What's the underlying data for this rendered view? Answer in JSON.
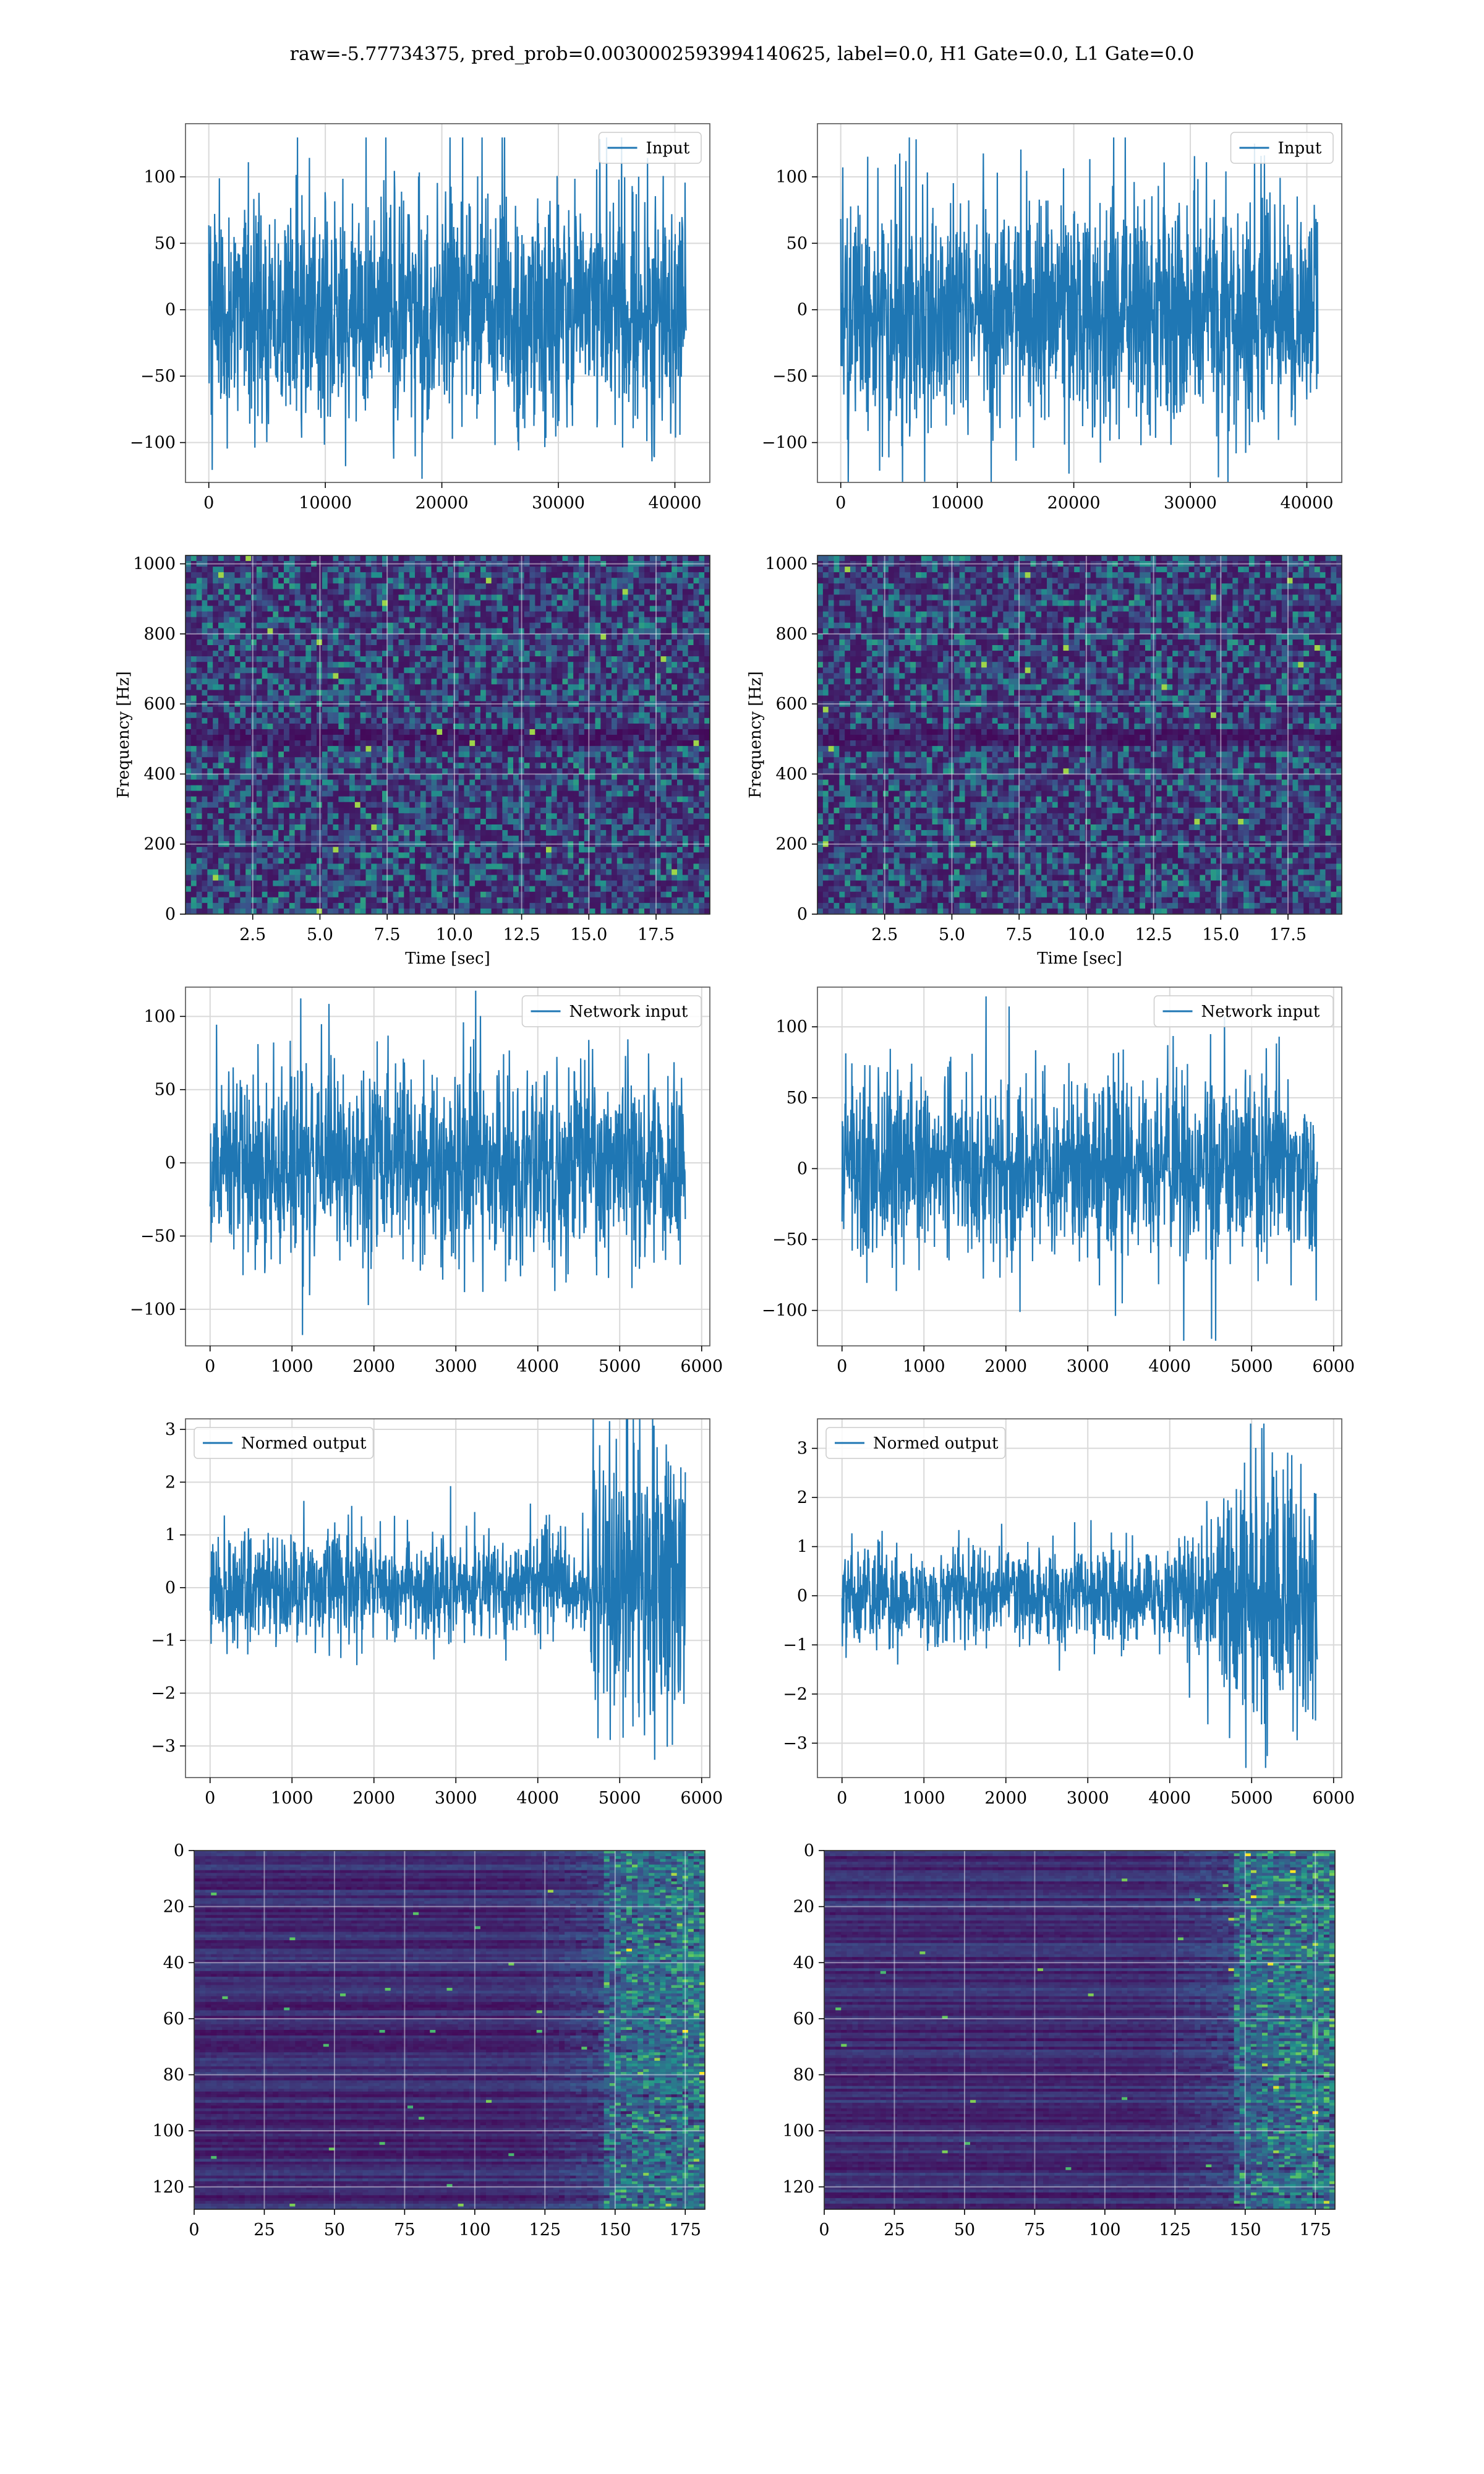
{
  "figure": {
    "title": "raw=-5.77734375, pred_prob=0.0030002593994140625, label=0.0, H1 Gate=0.0, L1 Gate=0.0"
  },
  "colors": {
    "line": "#1f77b4",
    "grid": "#d9d9d9",
    "axes": "#555555",
    "viridis_dark": "#440154",
    "viridis_mid": "#21918c",
    "viridis_bright": "#fde725"
  },
  "chart_data": [
    {
      "id": "input-left",
      "type": "line",
      "legend_loc": "upper right",
      "series": [
        {
          "name": "Input",
          "n": 40960,
          "amplitude": "approx -120 to 130",
          "envelope": [
            [
              0,
              45
            ],
            [
              1,
              45
            ]
          ]
        }
      ],
      "xlim": [
        -2000,
        43000
      ],
      "ylim": [
        -130,
        140
      ],
      "xticks": [
        0,
        10000,
        20000,
        30000,
        40000
      ],
      "yticks": [
        -100,
        -50,
        0,
        50,
        100
      ],
      "xlabel": "",
      "ylabel": "",
      "grid": true
    },
    {
      "id": "input-right",
      "type": "line",
      "legend_loc": "upper right",
      "series": [
        {
          "name": "Input",
          "n": 40960,
          "amplitude": "approx -120 to 130",
          "envelope": [
            [
              0,
              45
            ],
            [
              1,
              45
            ]
          ]
        }
      ],
      "xlim": [
        -2000,
        43000
      ],
      "ylim": [
        -130,
        140
      ],
      "xticks": [
        0,
        10000,
        20000,
        30000,
        40000
      ],
      "yticks": [
        -100,
        -50,
        0,
        50,
        100
      ],
      "xlabel": "",
      "ylabel": "",
      "grid": true
    },
    {
      "id": "spectrogram-left",
      "type": "heatmap",
      "colormap": "viridis",
      "xlim": [
        0,
        19.5
      ],
      "ylim": [
        0,
        1024
      ],
      "xticks": [
        2.5,
        5.0,
        7.5,
        10.0,
        12.5,
        15.0,
        17.5
      ],
      "yticks": [
        0,
        200,
        400,
        600,
        800,
        1000
      ],
      "xlabel": "Time [sec]",
      "ylabel": "Frequency [Hz]",
      "grid": true,
      "description": "noise-like spectrogram, dark band near 500 Hz"
    },
    {
      "id": "spectrogram-right",
      "type": "heatmap",
      "colormap": "viridis",
      "xlim": [
        0,
        19.5
      ],
      "ylim": [
        0,
        1024
      ],
      "xticks": [
        2.5,
        5.0,
        7.5,
        10.0,
        12.5,
        15.0,
        17.5
      ],
      "yticks": [
        0,
        200,
        400,
        600,
        800,
        1000
      ],
      "xlabel": "Time [sec]",
      "ylabel": "Frequency [Hz]",
      "grid": true,
      "description": "noise-like spectrogram, dark band near 500 Hz"
    },
    {
      "id": "network-input-left",
      "type": "line",
      "legend_loc": "upper right",
      "series": [
        {
          "name": "Network input",
          "n": 5800,
          "amplitude": "approx -115 to 110",
          "envelope": [
            [
              0,
              32
            ],
            [
              1,
              32
            ]
          ]
        }
      ],
      "xlim": [
        -300,
        6100
      ],
      "ylim": [
        -125,
        120
      ],
      "xticks": [
        0,
        1000,
        2000,
        3000,
        4000,
        5000,
        6000
      ],
      "yticks": [
        -100,
        -50,
        0,
        50,
        100
      ],
      "xlabel": "",
      "ylabel": "",
      "grid": true
    },
    {
      "id": "network-input-right",
      "type": "line",
      "legend_loc": "upper right",
      "series": [
        {
          "name": "Network input",
          "n": 5800,
          "amplitude": "approx -115 to 115",
          "envelope": [
            [
              0,
              32
            ],
            [
              1,
              32
            ]
          ]
        }
      ],
      "xlim": [
        -300,
        6100
      ],
      "ylim": [
        -125,
        128
      ],
      "xticks": [
        0,
        1000,
        2000,
        3000,
        4000,
        5000,
        6000
      ],
      "yticks": [
        -100,
        -50,
        0,
        50,
        100
      ],
      "xlabel": "",
      "ylabel": "",
      "grid": true
    },
    {
      "id": "normed-output-left",
      "type": "line",
      "legend_loc": "upper left",
      "series": [
        {
          "name": "Normed output",
          "n": 5800,
          "amplitude": "approx -3.3 to 2.9",
          "envelope": [
            [
              0,
              0.55
            ],
            [
              0.4,
              0.5
            ],
            [
              0.6,
              0.45
            ],
            [
              0.8,
              0.5
            ],
            [
              0.81,
              1.4
            ],
            [
              1,
              1.35
            ]
          ]
        }
      ],
      "xlim": [
        -300,
        6100
      ],
      "ylim": [
        -3.6,
        3.2
      ],
      "xticks": [
        0,
        1000,
        2000,
        3000,
        4000,
        5000,
        6000
      ],
      "yticks": [
        -3,
        -2,
        -1,
        0,
        1,
        2,
        3
      ],
      "xlabel": "",
      "ylabel": "",
      "grid": true
    },
    {
      "id": "normed-output-right",
      "type": "line",
      "legend_loc": "upper left",
      "series": [
        {
          "name": "Normed output",
          "n": 5800,
          "amplitude": "approx -3.4 to 3.3",
          "envelope": [
            [
              0,
              0.55
            ],
            [
              0.4,
              0.45
            ],
            [
              0.7,
              0.5
            ],
            [
              0.79,
              0.8
            ],
            [
              0.82,
              1.5
            ],
            [
              1,
              1.4
            ]
          ]
        }
      ],
      "xlim": [
        -300,
        6100
      ],
      "ylim": [
        -3.7,
        3.6
      ],
      "xticks": [
        0,
        1000,
        2000,
        3000,
        4000,
        5000,
        6000
      ],
      "yticks": [
        -3,
        -2,
        -1,
        0,
        1,
        2,
        3
      ],
      "xlabel": "",
      "ylabel": "",
      "grid": true
    },
    {
      "id": "feature-map-left",
      "type": "heatmap",
      "colormap": "viridis",
      "rows": 128,
      "cols": 182,
      "xlim": [
        0,
        182
      ],
      "ylim": [
        128,
        0
      ],
      "xticks": [
        0,
        25,
        50,
        75,
        100,
        125,
        150,
        175
      ],
      "yticks": [
        0,
        20,
        40,
        60,
        80,
        100,
        120
      ],
      "xlabel": "",
      "ylabel": "",
      "grid": true,
      "description": "dark horizontal bands, activity increases after column ~120, strong after ~150"
    },
    {
      "id": "feature-map-right",
      "type": "heatmap",
      "colormap": "viridis",
      "rows": 128,
      "cols": 182,
      "xlim": [
        0,
        182
      ],
      "ylim": [
        128,
        0
      ],
      "xticks": [
        0,
        25,
        50,
        75,
        100,
        125,
        150,
        175
      ],
      "yticks": [
        0,
        20,
        40,
        60,
        80,
        100,
        120
      ],
      "xlabel": "",
      "ylabel": "",
      "grid": true,
      "description": "dark horizontal bands, activity increases after column ~125, strong after ~140"
    }
  ]
}
